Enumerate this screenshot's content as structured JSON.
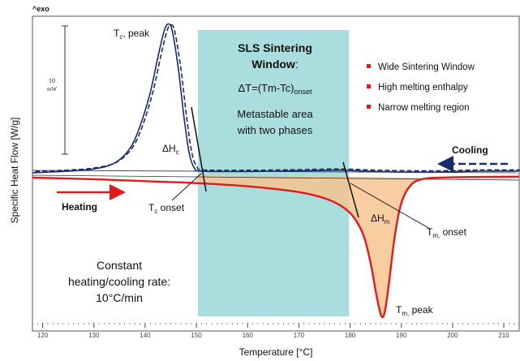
{
  "chart_data": {
    "type": "line",
    "corner_label": "^exo",
    "xlabel": "Temperature [°C]",
    "ylabel": "Specific Heat Flow [W/g]",
    "xlim": [
      118,
      213
    ],
    "x_ticks": [
      120,
      130,
      140,
      150,
      160,
      170,
      180,
      190,
      200,
      210
    ],
    "scale_bar_label": [
      "10",
      "mW"
    ],
    "series": [
      {
        "key": "cooling",
        "color": "#1a2a6c",
        "values": [
          [
            118,
            0.0
          ],
          [
            125,
            0.05
          ],
          [
            130,
            0.12
          ],
          [
            134,
            0.3
          ],
          [
            137,
            0.75
          ],
          [
            139,
            1.45
          ],
          [
            141,
            2.5
          ],
          [
            142.5,
            3.6
          ],
          [
            143.7,
            4.4
          ],
          [
            144.5,
            4.62
          ],
          [
            145.3,
            4.4
          ],
          [
            146.5,
            3.2
          ],
          [
            147.6,
            1.7
          ],
          [
            148.6,
            0.6
          ],
          [
            149.6,
            0.15
          ],
          [
            151,
            0.05
          ],
          [
            160,
            0.04
          ],
          [
            170,
            0.06
          ],
          [
            178,
            0.08
          ],
          [
            185,
            0.04
          ],
          [
            195,
            0.02
          ],
          [
            205,
            0.05
          ],
          [
            213,
            0.05
          ]
        ]
      },
      {
        "key": "heating",
        "color": "#e11b1b",
        "values": [
          [
            118,
            -0.15
          ],
          [
            130,
            -0.2
          ],
          [
            140,
            -0.26
          ],
          [
            150,
            -0.32
          ],
          [
            160,
            -0.42
          ],
          [
            170,
            -0.6
          ],
          [
            176,
            -0.85
          ],
          [
            180,
            -1.25
          ],
          [
            182.5,
            -1.9
          ],
          [
            184,
            -2.8
          ],
          [
            185.2,
            -3.85
          ],
          [
            186.1,
            -4.45
          ],
          [
            186.8,
            -4.3
          ],
          [
            187.6,
            -3.4
          ],
          [
            188.6,
            -2.1
          ],
          [
            189.8,
            -1.05
          ],
          [
            191.5,
            -0.45
          ],
          [
            194,
            -0.2
          ],
          [
            200,
            -0.14
          ],
          [
            213,
            -0.12
          ]
        ]
      }
    ],
    "window": {
      "x_range": [
        150.3,
        179.8
      ],
      "color": "#aadede",
      "title_lines": [
        "SLS Sintering",
        "Window"
      ],
      "title_colon": ":",
      "delta_main": "ΔT=(Tm-Tc)",
      "delta_sub": "onset",
      "desc_lines": [
        "Metastable area",
        "with two phases"
      ]
    },
    "legend": {
      "placement": "top-right",
      "marker_color": "#e11b1b",
      "items": [
        "Wide Sintering Window",
        "High melting enthalpy",
        "Narrow melting region"
      ]
    },
    "annotations": {
      "tc_peak": {
        "main": "T",
        "sub": "c",
        "rest": ", peak"
      },
      "dhc": {
        "main": "ΔH",
        "sub": "c"
      },
      "tc_onset": {
        "main": "T",
        "sub": "c",
        "rest": " onset"
      },
      "dhm": {
        "main": "ΔH",
        "sub": "m"
      },
      "tm_onset": {
        "main": "T",
        "sub": "m,",
        "rest": " onset"
      },
      "tm_peak": {
        "main": "T",
        "sub": "m,",
        "rest": " peak"
      },
      "heating": "Heating",
      "cooling": "Cooling",
      "rate_lines": [
        "Constant",
        "heating/cooling rate:",
        "10°C/min"
      ]
    }
  }
}
